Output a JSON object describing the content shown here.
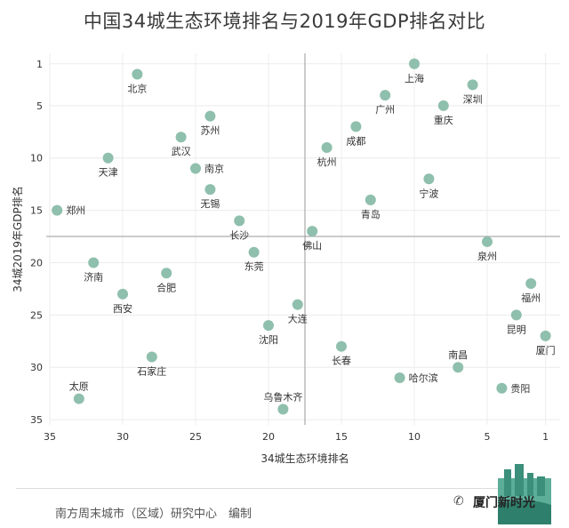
{
  "title": "中国34城生态环境排名与2019年GDP排名对比",
  "source": "南方周末城市（区域）研究中心　编制",
  "watermark": "厦门新时光",
  "colors": {
    "point": "#8fbfad",
    "crosshair": "#9a9a9a",
    "grid": "#ececec"
  },
  "icons": [
    "wechat-icon",
    "city-logo-icon"
  ],
  "chart_data": {
    "type": "scatter",
    "title": "中国34城生态环境排名与2019年GDP排名对比",
    "xlabel": "34城生态环境排名",
    "ylabel": "34城2019年GDP排名",
    "xlim": [
      35,
      0
    ],
    "ylim": [
      35.5,
      0
    ],
    "xticks": [
      35,
      30,
      25,
      20,
      15,
      10,
      5,
      1
    ],
    "yticks": [
      1,
      5,
      10,
      15,
      20,
      25,
      30,
      35
    ],
    "reference_lines": {
      "x": 17.5,
      "y": 17.5
    },
    "points": [
      {
        "name": "上海",
        "x": 10,
        "y": 1,
        "lpos": "below"
      },
      {
        "name": "北京",
        "x": 29,
        "y": 2,
        "lpos": "below"
      },
      {
        "name": "深圳",
        "x": 6,
        "y": 3,
        "lpos": "below"
      },
      {
        "name": "广州",
        "x": 12,
        "y": 4,
        "lpos": "below"
      },
      {
        "name": "重庆",
        "x": 8,
        "y": 5,
        "lpos": "below"
      },
      {
        "name": "苏州",
        "x": 24,
        "y": 6,
        "lpos": "below"
      },
      {
        "name": "成都",
        "x": 14,
        "y": 7,
        "lpos": "below"
      },
      {
        "name": "武汉",
        "x": 26,
        "y": 8,
        "lpos": "below"
      },
      {
        "name": "杭州",
        "x": 16,
        "y": 9,
        "lpos": "below"
      },
      {
        "name": "天津",
        "x": 31,
        "y": 10,
        "lpos": "below"
      },
      {
        "name": "南京",
        "x": 25,
        "y": 11,
        "lpos": "right"
      },
      {
        "name": "宁波",
        "x": 9,
        "y": 12,
        "lpos": "below"
      },
      {
        "name": "无锡",
        "x": 24,
        "y": 13,
        "lpos": "below"
      },
      {
        "name": "青岛",
        "x": 13,
        "y": 14,
        "lpos": "below"
      },
      {
        "name": "郑州",
        "x": 34.5,
        "y": 15,
        "lpos": "right"
      },
      {
        "name": "长沙",
        "x": 22,
        "y": 16,
        "lpos": "below"
      },
      {
        "name": "佛山",
        "x": 17,
        "y": 17,
        "lpos": "below"
      },
      {
        "name": "泉州",
        "x": 5,
        "y": 18,
        "lpos": "below"
      },
      {
        "name": "东莞",
        "x": 21,
        "y": 19,
        "lpos": "below"
      },
      {
        "name": "济南",
        "x": 32,
        "y": 20,
        "lpos": "below"
      },
      {
        "name": "合肥",
        "x": 27,
        "y": 21,
        "lpos": "below"
      },
      {
        "name": "福州",
        "x": 2,
        "y": 22,
        "lpos": "below"
      },
      {
        "name": "西安",
        "x": 30,
        "y": 23,
        "lpos": "below"
      },
      {
        "name": "大连",
        "x": 18,
        "y": 24,
        "lpos": "below"
      },
      {
        "name": "昆明",
        "x": 3,
        "y": 25,
        "lpos": "below"
      },
      {
        "name": "沈阳",
        "x": 20,
        "y": 26,
        "lpos": "below"
      },
      {
        "name": "厦门",
        "x": 1,
        "y": 27,
        "lpos": "below"
      },
      {
        "name": "长春",
        "x": 15,
        "y": 28,
        "lpos": "below"
      },
      {
        "name": "石家庄",
        "x": 28,
        "y": 29,
        "lpos": "below"
      },
      {
        "name": "南昌",
        "x": 7,
        "y": 30,
        "lpos": "above"
      },
      {
        "name": "哈尔滨",
        "x": 11,
        "y": 31,
        "lpos": "right"
      },
      {
        "name": "贵阳",
        "x": 4,
        "y": 32,
        "lpos": "right"
      },
      {
        "name": "太原",
        "x": 33,
        "y": 33,
        "lpos": "above"
      },
      {
        "name": "乌鲁木齐",
        "x": 19,
        "y": 34,
        "lpos": "above"
      }
    ]
  }
}
